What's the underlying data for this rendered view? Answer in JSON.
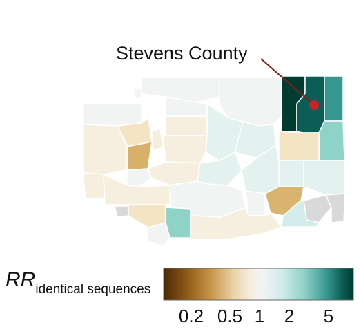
{
  "callout": {
    "label": "Stevens County",
    "marker_color": "#c8222a",
    "line_color": "#8b1a1a"
  },
  "legend": {
    "title_main": "RR",
    "title_sub": "identical sequences",
    "scale": "log",
    "ticks": [
      "0.2",
      "0.5",
      "1",
      "2",
      "5"
    ],
    "tick_values": [
      0.2,
      0.5,
      1,
      2,
      5
    ],
    "range": [
      0.1,
      10
    ],
    "colors": [
      "#4a2a05",
      "#8c5a14",
      "#c8964a",
      "#e9d4a6",
      "#f6efe0",
      "#f2f4f4",
      "#d2ece9",
      "#8fd3c8",
      "#35978f",
      "#0b5e55",
      "#003c30"
    ]
  },
  "map": {
    "region": "Washington State",
    "no_data_color": "#d9d9d9",
    "highlighted_county": "Stevens County"
  }
}
